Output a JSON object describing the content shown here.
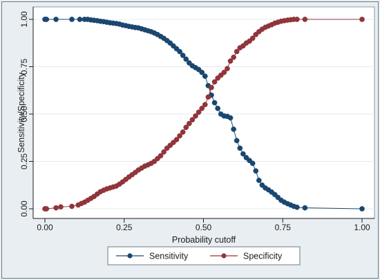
{
  "chart_data": {
    "type": "line",
    "title": "",
    "xlabel": "Probability cutoff",
    "ylabel": "Sensitivity/Specificity",
    "xlim": [
      0,
      1
    ],
    "ylim": [
      0,
      1
    ],
    "x_ticks": [
      "0.00",
      "0.25",
      "0.50",
      "0.75",
      "1.00"
    ],
    "y_ticks": [
      "0.00",
      "0.25",
      "0.50",
      "0.75",
      "1.00"
    ],
    "grid": "horizontal",
    "legend_position": "bottom",
    "colors": {
      "sensitivity": "#1a476f",
      "specificity": "#90353b"
    },
    "series": [
      {
        "name": "Sensitivity",
        "x": [
          0,
          0.005,
          0.035,
          0.085,
          0.11,
          0.125,
          0.135,
          0.145,
          0.155,
          0.165,
          0.175,
          0.185,
          0.195,
          0.205,
          0.215,
          0.225,
          0.235,
          0.245,
          0.255,
          0.265,
          0.275,
          0.285,
          0.295,
          0.305,
          0.315,
          0.325,
          0.335,
          0.345,
          0.355,
          0.365,
          0.375,
          0.385,
          0.395,
          0.405,
          0.415,
          0.425,
          0.435,
          0.445,
          0.455,
          0.465,
          0.475,
          0.485,
          0.495,
          0.505,
          0.515,
          0.525,
          0.535,
          0.545,
          0.555,
          0.565,
          0.575,
          0.585,
          0.595,
          0.605,
          0.615,
          0.625,
          0.635,
          0.645,
          0.655,
          0.665,
          0.675,
          0.685,
          0.695,
          0.705,
          0.715,
          0.725,
          0.735,
          0.745,
          0.755,
          0.765,
          0.775,
          0.785,
          0.795,
          0.82,
          1.0
        ],
        "y": [
          1.0,
          1.0,
          1.0,
          1.0,
          1.0,
          1.0,
          1.0,
          0.997,
          0.995,
          0.993,
          0.99,
          0.988,
          0.985,
          0.982,
          0.98,
          0.978,
          0.975,
          0.97,
          0.967,
          0.963,
          0.96,
          0.957,
          0.955,
          0.95,
          0.945,
          0.94,
          0.935,
          0.928,
          0.92,
          0.91,
          0.9,
          0.888,
          0.875,
          0.86,
          0.845,
          0.83,
          0.81,
          0.79,
          0.77,
          0.755,
          0.745,
          0.735,
          0.72,
          0.7,
          0.65,
          0.6,
          0.56,
          0.53,
          0.5,
          0.49,
          0.488,
          0.48,
          0.42,
          0.36,
          0.32,
          0.29,
          0.27,
          0.255,
          0.24,
          0.2,
          0.15,
          0.125,
          0.11,
          0.1,
          0.088,
          0.075,
          0.06,
          0.045,
          0.035,
          0.027,
          0.02,
          0.013,
          0.008,
          0.005,
          0.0
        ]
      },
      {
        "name": "Specificity",
        "x": [
          0,
          0.005,
          0.035,
          0.05,
          0.085,
          0.105,
          0.115,
          0.125,
          0.135,
          0.145,
          0.155,
          0.165,
          0.175,
          0.185,
          0.195,
          0.205,
          0.215,
          0.225,
          0.235,
          0.245,
          0.255,
          0.265,
          0.275,
          0.285,
          0.295,
          0.305,
          0.315,
          0.325,
          0.335,
          0.345,
          0.355,
          0.365,
          0.375,
          0.385,
          0.395,
          0.405,
          0.415,
          0.425,
          0.435,
          0.445,
          0.455,
          0.465,
          0.475,
          0.485,
          0.495,
          0.505,
          0.515,
          0.525,
          0.535,
          0.545,
          0.555,
          0.565,
          0.575,
          0.585,
          0.595,
          0.605,
          0.615,
          0.625,
          0.635,
          0.645,
          0.655,
          0.665,
          0.675,
          0.685,
          0.695,
          0.705,
          0.715,
          0.725,
          0.735,
          0.745,
          0.755,
          0.765,
          0.775,
          0.785,
          0.795,
          0.82,
          1.0
        ],
        "y": [
          0.0,
          0.0,
          0.005,
          0.01,
          0.013,
          0.02,
          0.028,
          0.035,
          0.045,
          0.055,
          0.065,
          0.078,
          0.09,
          0.098,
          0.105,
          0.11,
          0.115,
          0.12,
          0.13,
          0.142,
          0.155,
          0.168,
          0.18,
          0.192,
          0.205,
          0.215,
          0.225,
          0.232,
          0.24,
          0.25,
          0.265,
          0.28,
          0.3,
          0.32,
          0.335,
          0.35,
          0.365,
          0.385,
          0.405,
          0.43,
          0.45,
          0.47,
          0.49,
          0.51,
          0.53,
          0.55,
          0.59,
          0.64,
          0.67,
          0.69,
          0.705,
          0.72,
          0.74,
          0.78,
          0.8,
          0.83,
          0.85,
          0.86,
          0.875,
          0.885,
          0.9,
          0.92,
          0.935,
          0.948,
          0.958,
          0.965,
          0.972,
          0.98,
          0.985,
          0.99,
          0.993,
          0.996,
          0.998,
          1.0,
          1.0,
          1.0,
          1.0
        ]
      }
    ]
  }
}
